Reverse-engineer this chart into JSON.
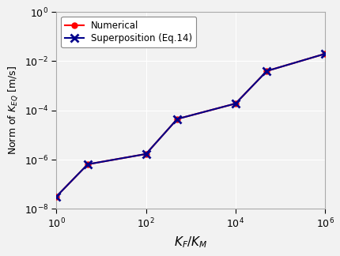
{
  "x_points": [
    1,
    5,
    100,
    500,
    10000,
    50000,
    1000000
  ],
  "y_numerical": [
    3.2e-08,
    6.5e-07,
    1.7e-06,
    4.5e-05,
    0.00019,
    0.004,
    0.02
  ],
  "y_superposition": [
    3.2e-08,
    6.5e-07,
    1.7e-06,
    4.5e-05,
    0.00019,
    0.004,
    0.02
  ],
  "numerical_color": "#ff0000",
  "superposition_color": "#00008B",
  "numerical_label": "Numerical",
  "superposition_label": "Superposition (Eq.14)",
  "xlabel": "$K_F/K_M$",
  "ylabel": "Norm of $K_{EQ}$ [m/s]",
  "xlim": [
    1.0,
    1000000.0
  ],
  "ylim": [
    1e-08,
    1.0
  ],
  "bg_color": "#f2f2f2",
  "grid_color": "#ffffff"
}
